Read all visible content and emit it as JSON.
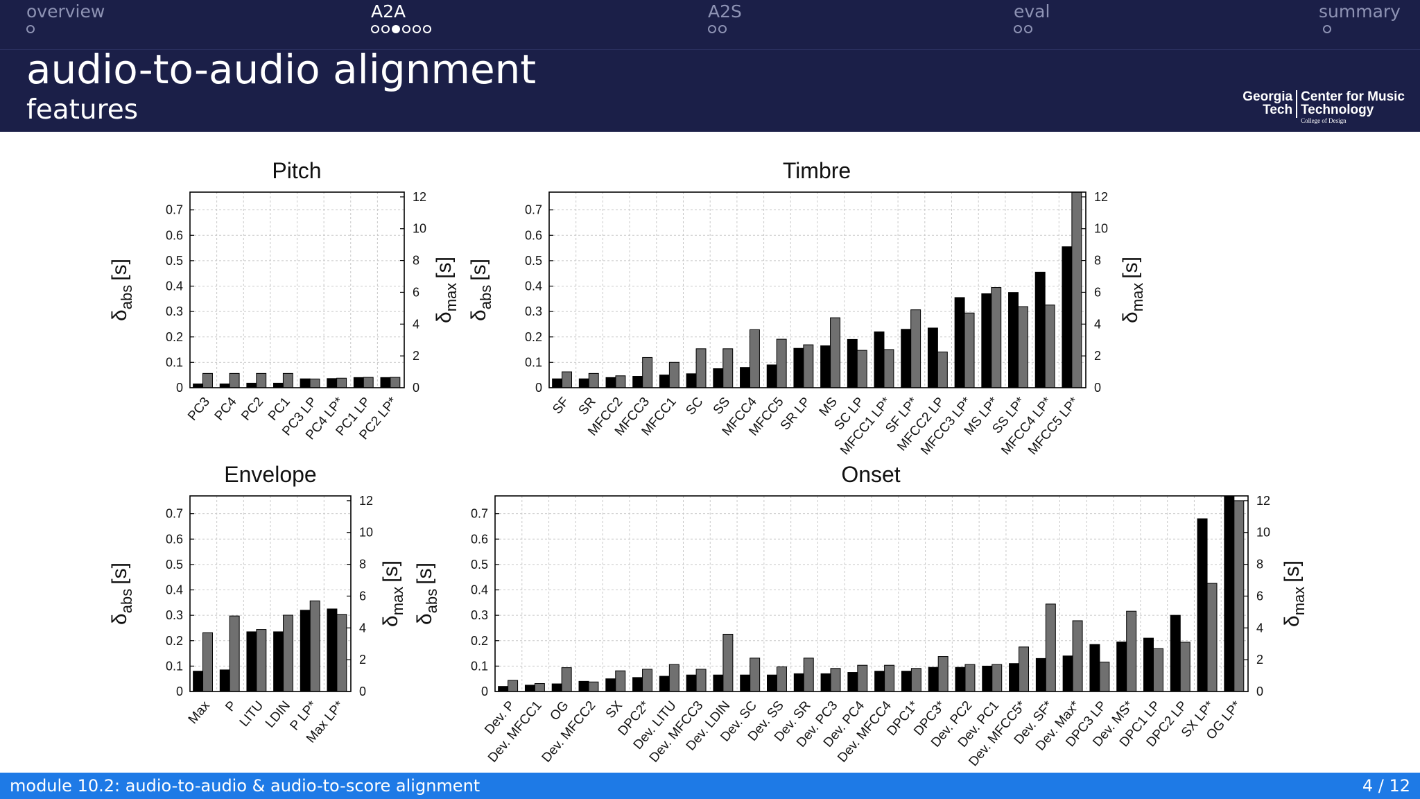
{
  "nav": [
    {
      "label": "overview",
      "dots": [
        0
      ]
    },
    {
      "label": "A2A",
      "dots": [
        0,
        0,
        1,
        0,
        0,
        0
      ]
    },
    {
      "label": "A2S",
      "dots": [
        0,
        0
      ]
    },
    {
      "label": "eval",
      "dots": [
        0,
        0
      ]
    },
    {
      "label": "summary",
      "dots": [
        0
      ]
    }
  ],
  "nav_active": "A2A",
  "header": {
    "title": "audio-to-audio alignment",
    "subtitle": "features"
  },
  "logo": {
    "line1a": "Georgia",
    "line1b": "Center for Music",
    "line2a": "Tech",
    "line2b": "Technology",
    "line3": "College of Design"
  },
  "footer": {
    "left": "module 10.2: audio-to-audio & audio-to-score alignment",
    "right": "4 / 12"
  },
  "colors": {
    "header_bg": "#1b1f48",
    "footer_bg": "#1e7ae6",
    "abs_bar": "#000000",
    "max_bar": "#707070"
  },
  "chart_data": [
    {
      "type": "bar",
      "title": "Pitch",
      "ylabel": "δabs [s]",
      "y2label": "δmax [s]",
      "ylim": [
        0,
        0.77
      ],
      "yticks": [
        0,
        0.1,
        0.2,
        0.3,
        0.4,
        0.5,
        0.6,
        0.7
      ],
      "y2lim": [
        0,
        12.3
      ],
      "y2ticks": [
        0,
        2,
        4,
        6,
        8,
        10,
        12
      ],
      "categories": [
        "PC3",
        "PC4",
        "PC2",
        "PC1",
        "PC3 LP",
        "PC4 LP*",
        "PC1 LP",
        "PC2 LP*"
      ],
      "series": [
        {
          "axis": "left",
          "values": [
            0.015,
            0.015,
            0.018,
            0.018,
            0.035,
            0.036,
            0.04,
            0.04
          ]
        },
        {
          "axis": "right",
          "values": [
            0.9,
            0.9,
            0.9,
            0.9,
            0.55,
            0.6,
            0.65,
            0.65
          ]
        }
      ]
    },
    {
      "type": "bar",
      "title": "Timbre",
      "ylabel": "δabs [s]",
      "y2label": "δmax [s]",
      "ylim": [
        0,
        0.77
      ],
      "yticks": [
        0,
        0.1,
        0.2,
        0.3,
        0.4,
        0.5,
        0.6,
        0.7
      ],
      "y2lim": [
        0,
        12.3
      ],
      "y2ticks": [
        0,
        2,
        4,
        6,
        8,
        10,
        12
      ],
      "categories": [
        "SF",
        "SR",
        "MFCC2",
        "MFCC3",
        "MFCC1",
        "SC",
        "SS",
        "MFCC4",
        "MFCC5",
        "SR LP",
        "MS",
        "SC LP",
        "MFCC1 LP*",
        "SF LP*",
        "MFCC2 LP",
        "MFCC3 LP*",
        "MS LP*",
        "SS LP*",
        "MFCC4 LP*",
        "MFCC5 LP*"
      ],
      "series": [
        {
          "axis": "left",
          "values": [
            0.035,
            0.035,
            0.04,
            0.045,
            0.05,
            0.055,
            0.075,
            0.08,
            0.09,
            0.155,
            0.165,
            0.19,
            0.22,
            0.23,
            0.235,
            0.355,
            0.37,
            0.375,
            0.455,
            0.555
          ]
        },
        {
          "axis": "right",
          "values": [
            1.0,
            0.9,
            0.75,
            1.9,
            1.6,
            2.45,
            2.45,
            3.65,
            3.05,
            2.7,
            4.4,
            2.35,
            2.4,
            4.9,
            2.25,
            4.7,
            6.3,
            5.1,
            5.2,
            12.3
          ]
        }
      ]
    },
    {
      "type": "bar",
      "title": "Envelope",
      "ylabel": "δabs [s]",
      "y2label": "δmax [s]",
      "ylim": [
        0,
        0.77
      ],
      "yticks": [
        0,
        0.1,
        0.2,
        0.3,
        0.4,
        0.5,
        0.6,
        0.7
      ],
      "y2lim": [
        0,
        12.3
      ],
      "y2ticks": [
        0,
        2,
        4,
        6,
        8,
        10,
        12
      ],
      "categories": [
        "Max",
        "P",
        "LITU",
        "LDIN",
        "P LP*",
        "Max LP*"
      ],
      "series": [
        {
          "axis": "left",
          "values": [
            0.08,
            0.085,
            0.235,
            0.235,
            0.32,
            0.325
          ]
        },
        {
          "axis": "right",
          "values": [
            3.7,
            4.75,
            3.9,
            4.8,
            5.7,
            4.85
          ]
        }
      ]
    },
    {
      "type": "bar",
      "title": "Onset",
      "ylabel": "δabs [s]",
      "y2label": "δmax [s]",
      "ylim": [
        0,
        0.77
      ],
      "yticks": [
        0,
        0.1,
        0.2,
        0.3,
        0.4,
        0.5,
        0.6,
        0.7
      ],
      "y2lim": [
        0,
        12.3
      ],
      "y2ticks": [
        0,
        2,
        4,
        6,
        8,
        10,
        12
      ],
      "categories": [
        "Dev. P",
        "Dev. MFCC1",
        "OG",
        "Dev. MFCC2",
        "SX",
        "DPC2*",
        "Dev. LITU",
        "Dev. MFCC3",
        "Dev. LDIN",
        "Dev. SC",
        "Dev. SS",
        "Dev. SR",
        "Dev. PC3",
        "Dev. PC4",
        "Dev. MFCC4",
        "DPC1*",
        "DPC3*",
        "Dev. PC2",
        "Dev. PC1",
        "Dev. MFCC5*",
        "Dev. SF*",
        "Dev. Max*",
        "DPC3 LP",
        "Dev. MS*",
        "DPC1 LP",
        "DPC2 LP",
        "SX LP*",
        "OG LP*"
      ],
      "series": [
        {
          "axis": "left",
          "values": [
            0.02,
            0.025,
            0.03,
            0.04,
            0.05,
            0.055,
            0.06,
            0.065,
            0.065,
            0.065,
            0.065,
            0.07,
            0.07,
            0.075,
            0.08,
            0.08,
            0.095,
            0.095,
            0.1,
            0.11,
            0.13,
            0.14,
            0.185,
            0.195,
            0.21,
            0.3,
            0.68,
            0.77
          ]
        },
        {
          "axis": "right",
          "values": [
            0.7,
            0.5,
            1.5,
            0.6,
            1.3,
            1.4,
            1.7,
            1.4,
            3.6,
            2.1,
            1.55,
            2.1,
            1.45,
            1.65,
            1.65,
            1.45,
            2.2,
            1.7,
            1.7,
            2.8,
            5.5,
            4.45,
            1.85,
            5.05,
            2.7,
            3.1,
            6.8,
            12.0
          ]
        }
      ]
    }
  ]
}
